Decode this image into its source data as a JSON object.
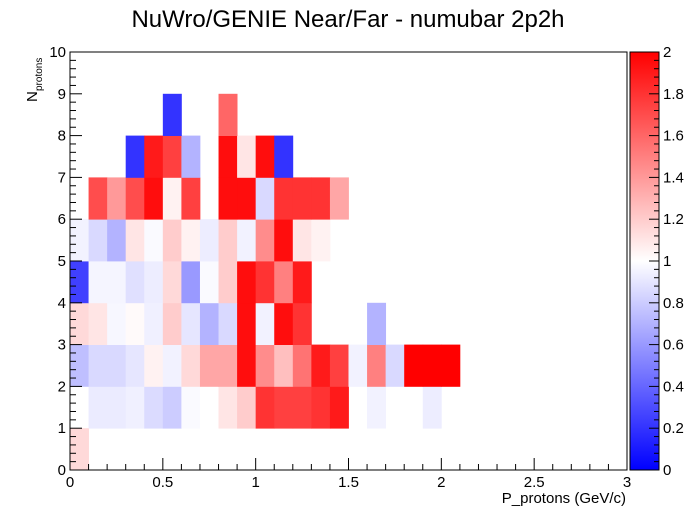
{
  "chart_data": {
    "type": "heatmap",
    "title": "NuWro/GENIE Near/Far - numubar 2p2h",
    "xlabel": "P_protons (GeV/c)",
    "ylabel": "N",
    "ylabel_sub": "protons",
    "xlim": [
      0,
      3
    ],
    "ylim": [
      0,
      10
    ],
    "x_bin_width": 0.1,
    "y_bin_width": 1,
    "x_ticks": [
      "0",
      "0.5",
      "1",
      "1.5",
      "2",
      "2.5",
      "3"
    ],
    "y_ticks": [
      "0",
      "1",
      "2",
      "3",
      "4",
      "5",
      "6",
      "7",
      "8",
      "9",
      "10"
    ],
    "zlim": [
      0,
      2
    ],
    "z_ticks": [
      "0",
      "0.2",
      "0.4",
      "0.6",
      "0.8",
      "1",
      "1.2",
      "1.4",
      "1.6",
      "1.8",
      "2"
    ],
    "colormap": {
      "low": "#0000ff",
      "mid": "#ffffff",
      "high": "#ff0000"
    },
    "grid": false,
    "cells": {
      "y0": [
        [
          0.0,
          1.15
        ]
      ],
      "y1": [
        [
          0.1,
          0.92
        ],
        [
          0.2,
          0.92
        ],
        [
          0.3,
          0.94
        ],
        [
          0.4,
          0.86
        ],
        [
          0.5,
          0.8
        ],
        [
          0.6,
          0.98
        ],
        [
          0.7,
          1.0
        ],
        [
          0.8,
          1.1
        ],
        [
          0.9,
          1.2
        ],
        [
          1.0,
          1.8
        ],
        [
          1.1,
          1.75
        ],
        [
          1.2,
          1.75
        ],
        [
          1.3,
          1.8
        ],
        [
          1.4,
          1.9
        ],
        [
          1.6,
          0.95
        ],
        [
          1.9,
          0.93
        ]
      ],
      "y2": [
        [
          0.0,
          0.75
        ],
        [
          0.1,
          0.85
        ],
        [
          0.2,
          0.85
        ],
        [
          0.3,
          0.9
        ],
        [
          0.4,
          1.05
        ],
        [
          0.5,
          0.95
        ],
        [
          0.6,
          1.15
        ],
        [
          0.7,
          1.35
        ],
        [
          0.8,
          1.35
        ],
        [
          0.9,
          1.95
        ],
        [
          1.0,
          1.45
        ],
        [
          1.1,
          1.25
        ],
        [
          1.2,
          1.55
        ],
        [
          1.3,
          1.9
        ],
        [
          1.4,
          1.75
        ],
        [
          1.5,
          0.95
        ],
        [
          1.6,
          1.5
        ],
        [
          1.7,
          0.85
        ],
        [
          1.8,
          2.0
        ],
        [
          1.9,
          2.0
        ],
        [
          2.0,
          2.0
        ]
      ],
      "y3": [
        [
          0.0,
          1.15
        ],
        [
          0.1,
          1.1
        ],
        [
          0.2,
          0.97
        ],
        [
          0.3,
          1.02
        ],
        [
          0.4,
          0.94
        ],
        [
          0.5,
          1.2
        ],
        [
          0.6,
          0.9
        ],
        [
          0.7,
          0.7
        ],
        [
          0.8,
          0.85
        ],
        [
          0.9,
          1.95
        ],
        [
          1.0,
          0.95
        ],
        [
          1.1,
          1.95
        ],
        [
          1.2,
          1.8
        ],
        [
          1.6,
          0.7
        ]
      ],
      "y4": [
        [
          0.0,
          0.25
        ],
        [
          0.1,
          0.96
        ],
        [
          0.2,
          0.96
        ],
        [
          0.3,
          0.88
        ],
        [
          0.4,
          0.93
        ],
        [
          0.5,
          1.15
        ],
        [
          0.6,
          0.6
        ],
        [
          0.7,
          0.98
        ],
        [
          0.8,
          1.2
        ],
        [
          0.9,
          1.95
        ],
        [
          1.0,
          1.8
        ],
        [
          1.1,
          1.5
        ],
        [
          1.2,
          1.9
        ]
      ],
      "y5": [
        [
          0.0,
          0.95
        ],
        [
          0.1,
          0.85
        ],
        [
          0.2,
          0.7
        ],
        [
          0.3,
          1.1
        ],
        [
          0.4,
          0.98
        ],
        [
          0.5,
          1.2
        ],
        [
          0.6,
          1.05
        ],
        [
          0.7,
          0.93
        ],
        [
          0.8,
          1.2
        ],
        [
          0.9,
          0.95
        ],
        [
          1.0,
          1.45
        ],
        [
          1.1,
          1.95
        ],
        [
          1.2,
          1.1
        ],
        [
          1.3,
          1.05
        ]
      ],
      "y6": [
        [
          0.1,
          1.7
        ],
        [
          0.2,
          1.4
        ],
        [
          0.3,
          1.7
        ],
        [
          0.4,
          1.95
        ],
        [
          0.5,
          1.05
        ],
        [
          0.6,
          1.75
        ],
        [
          0.8,
          1.95
        ],
        [
          0.9,
          1.95
        ],
        [
          1.0,
          0.85
        ],
        [
          1.1,
          1.8
        ],
        [
          1.2,
          1.8
        ],
        [
          1.3,
          1.8
        ],
        [
          1.4,
          1.35
        ]
      ],
      "y7": [
        [
          0.3,
          0.2
        ],
        [
          0.4,
          1.9
        ],
        [
          0.5,
          1.75
        ],
        [
          0.6,
          0.7
        ],
        [
          0.8,
          1.95
        ],
        [
          0.9,
          1.1
        ],
        [
          1.0,
          1.95
        ],
        [
          1.1,
          0.2
        ]
      ],
      "y8": [
        [
          0.5,
          0.2
        ],
        [
          0.8,
          1.6
        ]
      ]
    }
  }
}
